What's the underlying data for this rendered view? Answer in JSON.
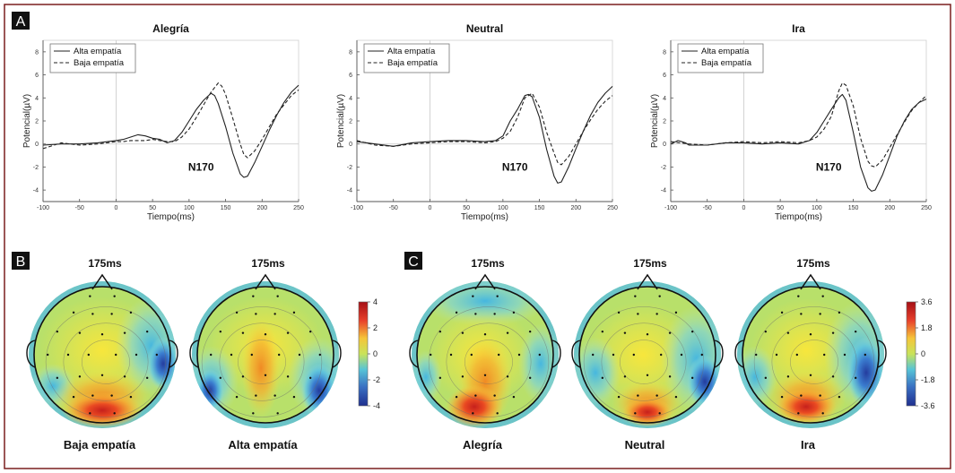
{
  "panel_labels": [
    "A",
    "B",
    "C"
  ],
  "chart_data": [
    {
      "type": "line",
      "title": "Alegría",
      "xlabel": "Tiempo(ms)",
      "ylabel": "Potencial(µV)",
      "xlim": [
        -100,
        250
      ],
      "ylim": [
        -5,
        9
      ],
      "xticks": [
        "-100",
        "-50",
        "0",
        "50",
        "100",
        "150",
        "200",
        "250"
      ],
      "yticks": [
        "-4",
        "-2",
        "0",
        "2",
        "4",
        "6",
        "8"
      ],
      "legend": "top-left",
      "annotation": "N170",
      "series": [
        {
          "name": "Alta empatía",
          "style": "solid",
          "x": [
            -100,
            -75,
            -50,
            -25,
            0,
            10,
            20,
            30,
            40,
            50,
            60,
            70,
            80,
            90,
            100,
            110,
            120,
            130,
            135,
            140,
            150,
            160,
            170,
            175,
            180,
            190,
            200,
            210,
            220,
            230,
            240,
            250
          ],
          "y": [
            -0.1,
            0.0,
            0.0,
            0.1,
            0.3,
            0.4,
            0.6,
            0.8,
            0.7,
            0.5,
            0.4,
            0.1,
            0.3,
            1.0,
            2.0,
            3.0,
            3.8,
            4.4,
            4.2,
            3.5,
            1.5,
            -0.8,
            -2.6,
            -2.9,
            -2.8,
            -1.6,
            -0.2,
            1.2,
            2.5,
            3.6,
            4.5,
            5.1
          ]
        },
        {
          "name": "Baja empatía",
          "style": "dashed",
          "x": [
            -100,
            -75,
            -50,
            -25,
            0,
            10,
            20,
            30,
            40,
            50,
            60,
            70,
            80,
            90,
            100,
            110,
            120,
            130,
            140,
            145,
            150,
            160,
            170,
            175,
            180,
            190,
            200,
            210,
            220,
            230,
            240,
            250
          ],
          "y": [
            -0.4,
            0.1,
            -0.1,
            0.0,
            0.2,
            0.2,
            0.3,
            0.3,
            0.3,
            0.4,
            0.3,
            0.2,
            0.2,
            0.6,
            1.3,
            2.3,
            3.4,
            4.5,
            5.3,
            5.0,
            4.3,
            2.2,
            0.0,
            -0.9,
            -1.2,
            -0.6,
            0.4,
            1.5,
            2.6,
            3.4,
            4.2,
            4.7
          ]
        }
      ]
    },
    {
      "type": "line",
      "title": "Neutral",
      "xlabel": "Tiempo(ms)",
      "ylabel": "Potencial(µV)",
      "xlim": [
        -100,
        250
      ],
      "ylim": [
        -5,
        9
      ],
      "xticks": [
        "-100",
        "-50",
        "0",
        "50",
        "100",
        "150",
        "200",
        "250"
      ],
      "yticks": [
        "-4",
        "-2",
        "0",
        "2",
        "4",
        "6",
        "8"
      ],
      "legend": "top-left",
      "annotation": "N170",
      "series": [
        {
          "name": "Alta empatía",
          "style": "solid",
          "x": [
            -100,
            -75,
            -50,
            -25,
            0,
            25,
            50,
            75,
            90,
            100,
            110,
            120,
            130,
            135,
            140,
            150,
            160,
            170,
            175,
            180,
            190,
            200,
            210,
            220,
            230,
            240,
            250
          ],
          "y": [
            0.2,
            0.0,
            -0.2,
            0.1,
            0.2,
            0.3,
            0.3,
            0.2,
            0.3,
            0.7,
            2.0,
            3.0,
            4.2,
            4.3,
            4.1,
            2.3,
            -0.5,
            -2.8,
            -3.4,
            -3.3,
            -2.0,
            -0.4,
            1.1,
            2.5,
            3.6,
            4.4,
            5.0
          ]
        },
        {
          "name": "Baja empatía",
          "style": "dashed",
          "x": [
            -100,
            -75,
            -50,
            -25,
            0,
            25,
            50,
            75,
            90,
            100,
            110,
            120,
            130,
            140,
            150,
            160,
            170,
            175,
            180,
            190,
            200,
            210,
            220,
            230,
            240,
            250
          ],
          "y": [
            0.3,
            -0.1,
            -0.2,
            0.0,
            0.1,
            0.2,
            0.2,
            0.1,
            0.2,
            0.5,
            1.1,
            2.3,
            4.0,
            4.4,
            3.2,
            1.0,
            -0.8,
            -1.6,
            -1.8,
            -1.1,
            0.0,
            1.1,
            2.1,
            3.0,
            3.7,
            4.2
          ]
        }
      ]
    },
    {
      "type": "line",
      "title": "Ira",
      "xlabel": "Tiempo(ms)",
      "ylabel": "Potencial(µV)",
      "xlim": [
        -100,
        250
      ],
      "ylim": [
        -5,
        9
      ],
      "xticks": [
        "-100",
        "-50",
        "0",
        "50",
        "100",
        "150",
        "200",
        "250"
      ],
      "yticks": [
        "-4",
        "-2",
        "0",
        "2",
        "4",
        "6",
        "8"
      ],
      "legend": "top-left",
      "annotation": "N170",
      "series": [
        {
          "name": "Alta empatía",
          "style": "solid",
          "x": [
            -100,
            -90,
            -80,
            -75,
            -50,
            -25,
            0,
            25,
            50,
            75,
            90,
            100,
            110,
            120,
            130,
            135,
            140,
            150,
            160,
            170,
            175,
            180,
            190,
            200,
            210,
            220,
            230,
            240,
            250
          ],
          "y": [
            0.0,
            0.3,
            0.1,
            -0.1,
            -0.1,
            0.1,
            0.1,
            0.0,
            0.1,
            0.0,
            0.3,
            1.0,
            2.0,
            3.0,
            4.0,
            4.3,
            3.8,
            1.0,
            -2.0,
            -3.8,
            -4.1,
            -4.0,
            -2.7,
            -1.0,
            0.7,
            2.0,
            3.0,
            3.6,
            3.9
          ]
        },
        {
          "name": "Baja empatía",
          "style": "dashed",
          "x": [
            -100,
            -75,
            -50,
            -25,
            0,
            25,
            50,
            75,
            90,
            100,
            110,
            120,
            130,
            135,
            140,
            150,
            160,
            170,
            175,
            180,
            190,
            200,
            210,
            220,
            230,
            240,
            250
          ],
          "y": [
            0.2,
            0.0,
            -0.1,
            0.1,
            0.2,
            0.1,
            0.2,
            0.1,
            0.3,
            0.6,
            1.3,
            2.4,
            4.6,
            5.3,
            5.1,
            3.3,
            0.5,
            -1.5,
            -1.9,
            -2.0,
            -1.4,
            -0.3,
            0.8,
            1.9,
            2.9,
            3.6,
            4.2
          ]
        }
      ]
    },
    {
      "type": "heatmap",
      "subtype": "scalp-topography",
      "time_label": "175ms",
      "condition": "Baja empatía",
      "colorbar": {
        "min": -4,
        "max": 4,
        "ticks": [
          "4",
          "2",
          "0",
          "-2",
          "-4"
        ]
      }
    },
    {
      "type": "heatmap",
      "subtype": "scalp-topography",
      "time_label": "175ms",
      "condition": "Alta empatía",
      "colorbar": {
        "min": -4,
        "max": 4,
        "ticks": [
          "4",
          "2",
          "0",
          "-2",
          "-4"
        ]
      }
    },
    {
      "type": "heatmap",
      "subtype": "scalp-topography",
      "time_label": "175ms",
      "condition": "Alegría",
      "colorbar": {
        "min": -3.6,
        "max": 3.6,
        "ticks": [
          "3.6",
          "1.8",
          "0",
          "-1.8",
          "-3.6"
        ]
      }
    },
    {
      "type": "heatmap",
      "subtype": "scalp-topography",
      "time_label": "175ms",
      "condition": "Neutral",
      "colorbar": {
        "min": -3.6,
        "max": 3.6,
        "ticks": [
          "3.6",
          "1.8",
          "0",
          "-1.8",
          "-3.6"
        ]
      }
    },
    {
      "type": "heatmap",
      "subtype": "scalp-topography",
      "time_label": "175ms",
      "condition": "Ira",
      "colorbar": {
        "min": -3.6,
        "max": 3.6,
        "ticks": [
          "3.6",
          "1.8",
          "0",
          "-1.8",
          "-3.6"
        ]
      }
    }
  ]
}
